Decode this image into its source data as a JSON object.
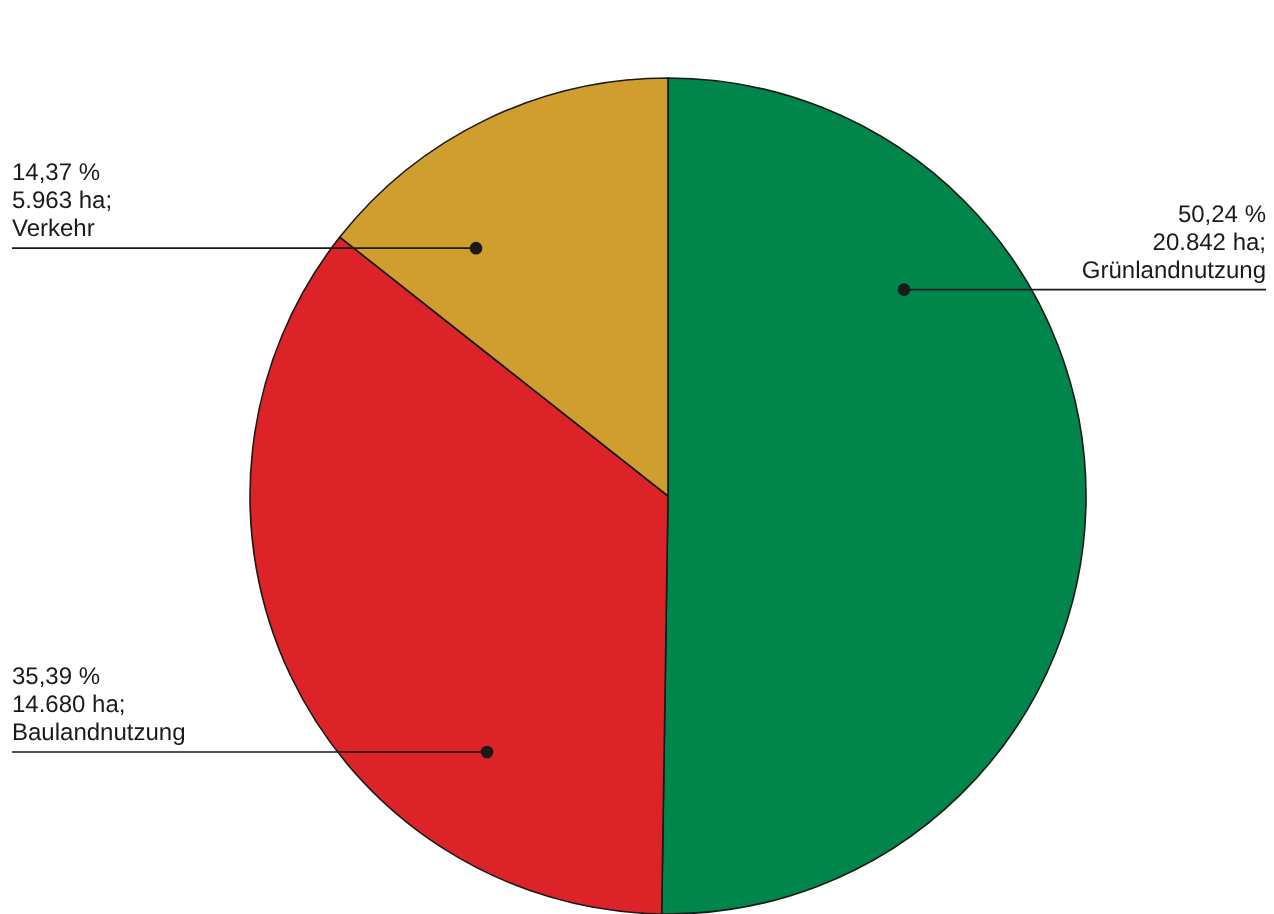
{
  "chart_data": {
    "type": "pie",
    "categories": [
      "Grünlandnutzung",
      "Baulandnutzung",
      "Verkehr"
    ],
    "values": [
      50.24,
      35.39,
      14.37
    ],
    "colors": [
      "#00854a",
      "#dc2328",
      "#cf9e2f"
    ],
    "value_labels": [
      "50,24 %\n20.842 ha;",
      "35,39 %\n14.680 ha;",
      "14,37 %\n5.963 ha;"
    ]
  }
}
